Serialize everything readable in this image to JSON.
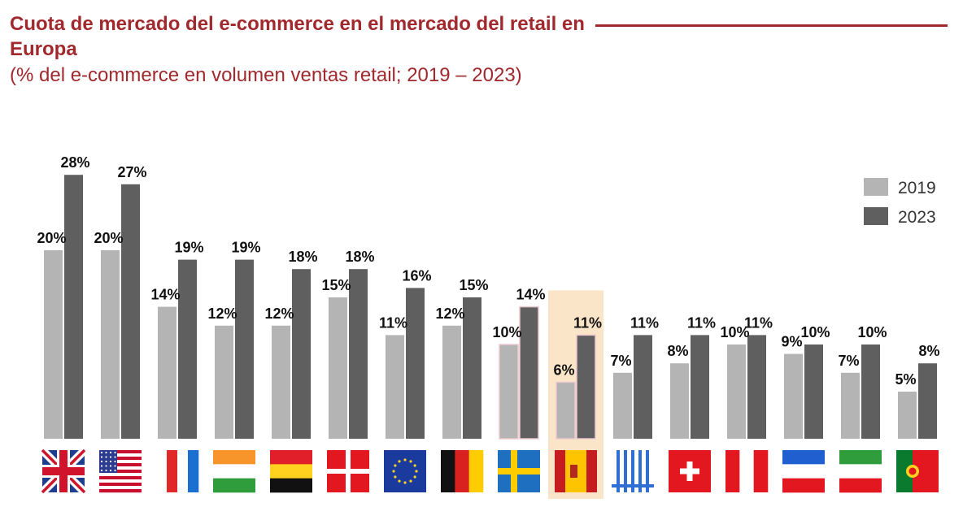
{
  "title": "Cuota de mercado del e-commerce en el mercado del retail en Europa",
  "subtitle": "(% del e-commerce en volumen ventas retail; 2019 – 2023)",
  "colors": {
    "title": "#a1282d",
    "series_2019": "#b4b4b4",
    "series_2023": "#5f5f5f",
    "highlight": "#fbe5c8"
  },
  "chart_data": {
    "type": "bar",
    "unit": "%",
    "categories": [
      "UK-flag",
      "USA-flag",
      "France-flag",
      "Ireland-flag",
      "Belgium-flag",
      "Denmark-flag",
      "EU-flag",
      "Germany-flag",
      "Sweden-flag",
      "Spain-flag",
      "Greece-flag",
      "Switzerland-flag",
      "Austria-flag",
      "Netherlands-flag",
      "Italy-flag",
      "Portugal-flag"
    ],
    "series": [
      {
        "name": "2019",
        "values": [
          20,
          20,
          14,
          12,
          12,
          15,
          11,
          12,
          10,
          6,
          7,
          8,
          10,
          9,
          7,
          5
        ]
      },
      {
        "name": "2023",
        "values": [
          28,
          27,
          19,
          19,
          18,
          18,
          16,
          15,
          14,
          11,
          11,
          11,
          11,
          10,
          10,
          8
        ]
      }
    ],
    "labels_2019": [
      "20%",
      "20%",
      "14%",
      "12%",
      "12%",
      "15%",
      "11%",
      "12%",
      "10%",
      "6%",
      "7%",
      "8%",
      "10%",
      "9%",
      "7%",
      "5%"
    ],
    "labels_2023": [
      "28%",
      "27%",
      "19%",
      "19%",
      "18%",
      "18%",
      "16%",
      "15%",
      "14%",
      "11%",
      "11%",
      "11%",
      "11%",
      "10%",
      "10%",
      "8%"
    ],
    "highlight_category": "Spain-flag",
    "legend": [
      "2019",
      "2023"
    ],
    "legend_position": "top-right",
    "grid": false,
    "axes_visible": false
  }
}
